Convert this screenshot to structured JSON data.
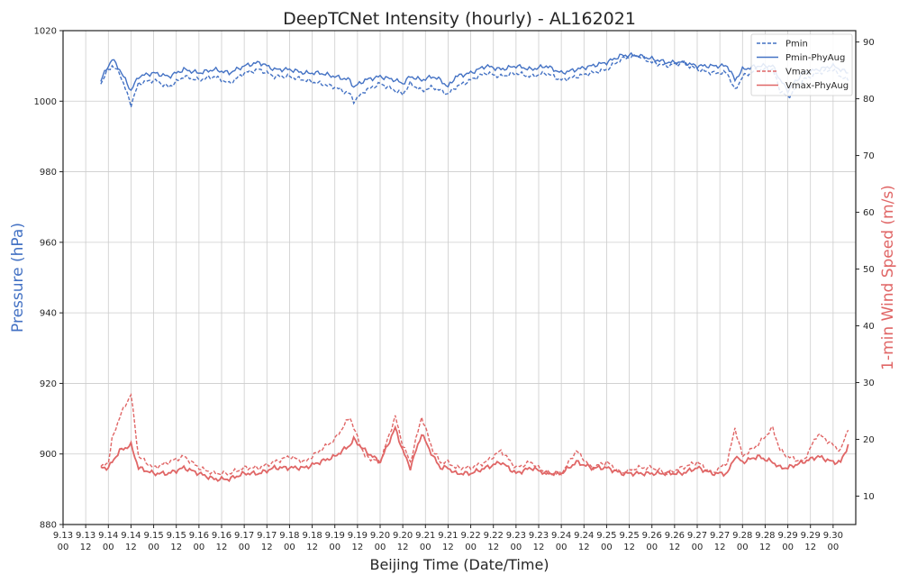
{
  "chart_data": {
    "type": "line",
    "title": "DeepTCNet Intensity (hourly) - AL162021",
    "xlabel": "Beijing Time (Date/Time)",
    "ylabel_left": "Pressure (hPa)",
    "ylabel_right": "1-min Wind Speed (m/s)",
    "ylim_left": [
      880,
      1020
    ],
    "ylim_right": [
      5,
      92
    ],
    "yticks_left": [
      "880",
      "900",
      "920",
      "940",
      "960",
      "980",
      "1000",
      "1020"
    ],
    "yticks_right": [
      "10",
      "20",
      "30",
      "40",
      "50",
      "60",
      "70",
      "80",
      "90"
    ],
    "xlim_hours": [
      0,
      420
    ],
    "xticks": [
      {
        "date": "9.13",
        "time": "00"
      },
      {
        "date": "9.13",
        "time": "12"
      },
      {
        "date": "9.14",
        "time": "00"
      },
      {
        "date": "9.14",
        "time": "12"
      },
      {
        "date": "9.15",
        "time": "00"
      },
      {
        "date": "9.15",
        "time": "12"
      },
      {
        "date": "9.16",
        "time": "00"
      },
      {
        "date": "9.16",
        "time": "12"
      },
      {
        "date": "9.17",
        "time": "00"
      },
      {
        "date": "9.17",
        "time": "12"
      },
      {
        "date": "9.18",
        "time": "00"
      },
      {
        "date": "9.18",
        "time": "12"
      },
      {
        "date": "9.19",
        "time": "00"
      },
      {
        "date": "9.19",
        "time": "12"
      },
      {
        "date": "9.20",
        "time": "00"
      },
      {
        "date": "9.20",
        "time": "12"
      },
      {
        "date": "9.21",
        "time": "00"
      },
      {
        "date": "9.21",
        "time": "12"
      },
      {
        "date": "9.22",
        "time": "00"
      },
      {
        "date": "9.22",
        "time": "12"
      },
      {
        "date": "9.23",
        "time": "00"
      },
      {
        "date": "9.23",
        "time": "12"
      },
      {
        "date": "9.24",
        "time": "00"
      },
      {
        "date": "9.24",
        "time": "12"
      },
      {
        "date": "9.25",
        "time": "00"
      },
      {
        "date": "9.25",
        "time": "12"
      },
      {
        "date": "9.26",
        "time": "00"
      },
      {
        "date": "9.26",
        "time": "12"
      },
      {
        "date": "9.27",
        "time": "00"
      },
      {
        "date": "9.27",
        "time": "12"
      },
      {
        "date": "9.28",
        "time": "00"
      },
      {
        "date": "9.28",
        "time": "12"
      },
      {
        "date": "9.29",
        "time": "00"
      },
      {
        "date": "9.29",
        "time": "12"
      },
      {
        "date": "9.30",
        "time": "00"
      }
    ],
    "x_hours": [
      20,
      24,
      26,
      30,
      36,
      40,
      48,
      56,
      64,
      72,
      80,
      88,
      96,
      104,
      112,
      120,
      128,
      136,
      144,
      152,
      154,
      160,
      168,
      176,
      180,
      184,
      190,
      196,
      200,
      204,
      208,
      216,
      224,
      232,
      240,
      248,
      256,
      264,
      272,
      280,
      288,
      296,
      304,
      312,
      320,
      328,
      336,
      344,
      352,
      356,
      360,
      368,
      376,
      380,
      384,
      392,
      400,
      408,
      412,
      416
    ],
    "series": [
      {
        "name": "Pmin",
        "axis": "left",
        "style": "dashed",
        "color": "#4472c4",
        "values": [
          1005,
          1009,
          1010,
          1008,
          999,
          1005,
          1006,
          1004,
          1007,
          1006,
          1007,
          1005,
          1008,
          1009,
          1007,
          1007,
          1006,
          1005,
          1004,
          1002,
          1000,
          1003,
          1005,
          1003,
          1002,
          1005,
          1003,
          1004,
          1003,
          1002,
          1004,
          1006,
          1008,
          1007,
          1008,
          1007,
          1008,
          1006,
          1007,
          1008,
          1009,
          1012,
          1013,
          1011,
          1010,
          1011,
          1009,
          1008,
          1008,
          1003,
          1007,
          1009,
          1009,
          1003,
          1001,
          1006,
          1008,
          1009,
          1007,
          1006
        ]
      },
      {
        "name": "Pmin-PhyAug",
        "axis": "left",
        "style": "solid",
        "color": "#4472c4",
        "values": [
          1006,
          1010,
          1012,
          1009,
          1003,
          1007,
          1008,
          1007,
          1009,
          1008,
          1009,
          1008,
          1010,
          1011,
          1009,
          1009,
          1008,
          1008,
          1007,
          1006,
          1004,
          1006,
          1007,
          1006,
          1005,
          1007,
          1006,
          1007,
          1006,
          1004,
          1007,
          1008,
          1010,
          1009,
          1010,
          1009,
          1010,
          1008,
          1009,
          1010,
          1011,
          1013,
          1013,
          1012,
          1011,
          1011,
          1010,
          1010,
          1010,
          1006,
          1009,
          1010,
          1010,
          1006,
          1003,
          1008,
          1009,
          1010,
          1009,
          1008
        ]
      },
      {
        "name": "Vmax",
        "axis": "right",
        "style": "dashed",
        "color": "#e06666",
        "values": [
          15,
          16,
          20,
          24,
          28,
          17,
          15,
          16,
          17,
          15,
          14,
          14,
          15,
          15,
          16,
          17,
          16,
          18,
          20,
          24,
          22,
          17,
          16,
          24,
          19,
          16,
          24,
          18,
          16,
          16,
          15,
          15,
          16,
          18,
          15,
          16,
          14,
          14,
          18,
          15,
          16,
          14,
          15,
          15,
          14,
          15,
          16,
          14,
          16,
          22,
          17,
          19,
          22,
          18,
          17,
          16,
          21,
          19,
          18,
          22
        ]
      },
      {
        "name": "Vmax-PhyAug",
        "axis": "right",
        "style": "solid",
        "color": "#e06666",
        "values": [
          15,
          15,
          16,
          18,
          19,
          15,
          14,
          14,
          15,
          14,
          13,
          13,
          14,
          14,
          15,
          15,
          15,
          16,
          17,
          19,
          20,
          18,
          16,
          22,
          18,
          15,
          21,
          17,
          15,
          15,
          14,
          14,
          15,
          16,
          14,
          15,
          14,
          14,
          16,
          15,
          15,
          14,
          14,
          14,
          14,
          14,
          15,
          14,
          14,
          17,
          16,
          17,
          16,
          15,
          15,
          16,
          17,
          16,
          16,
          19
        ]
      }
    ],
    "legend": [
      "Pmin",
      "Pmin-PhyAug",
      "Vmax",
      "Vmax-PhyAug"
    ],
    "legend_position": "top-right",
    "grid": true
  }
}
